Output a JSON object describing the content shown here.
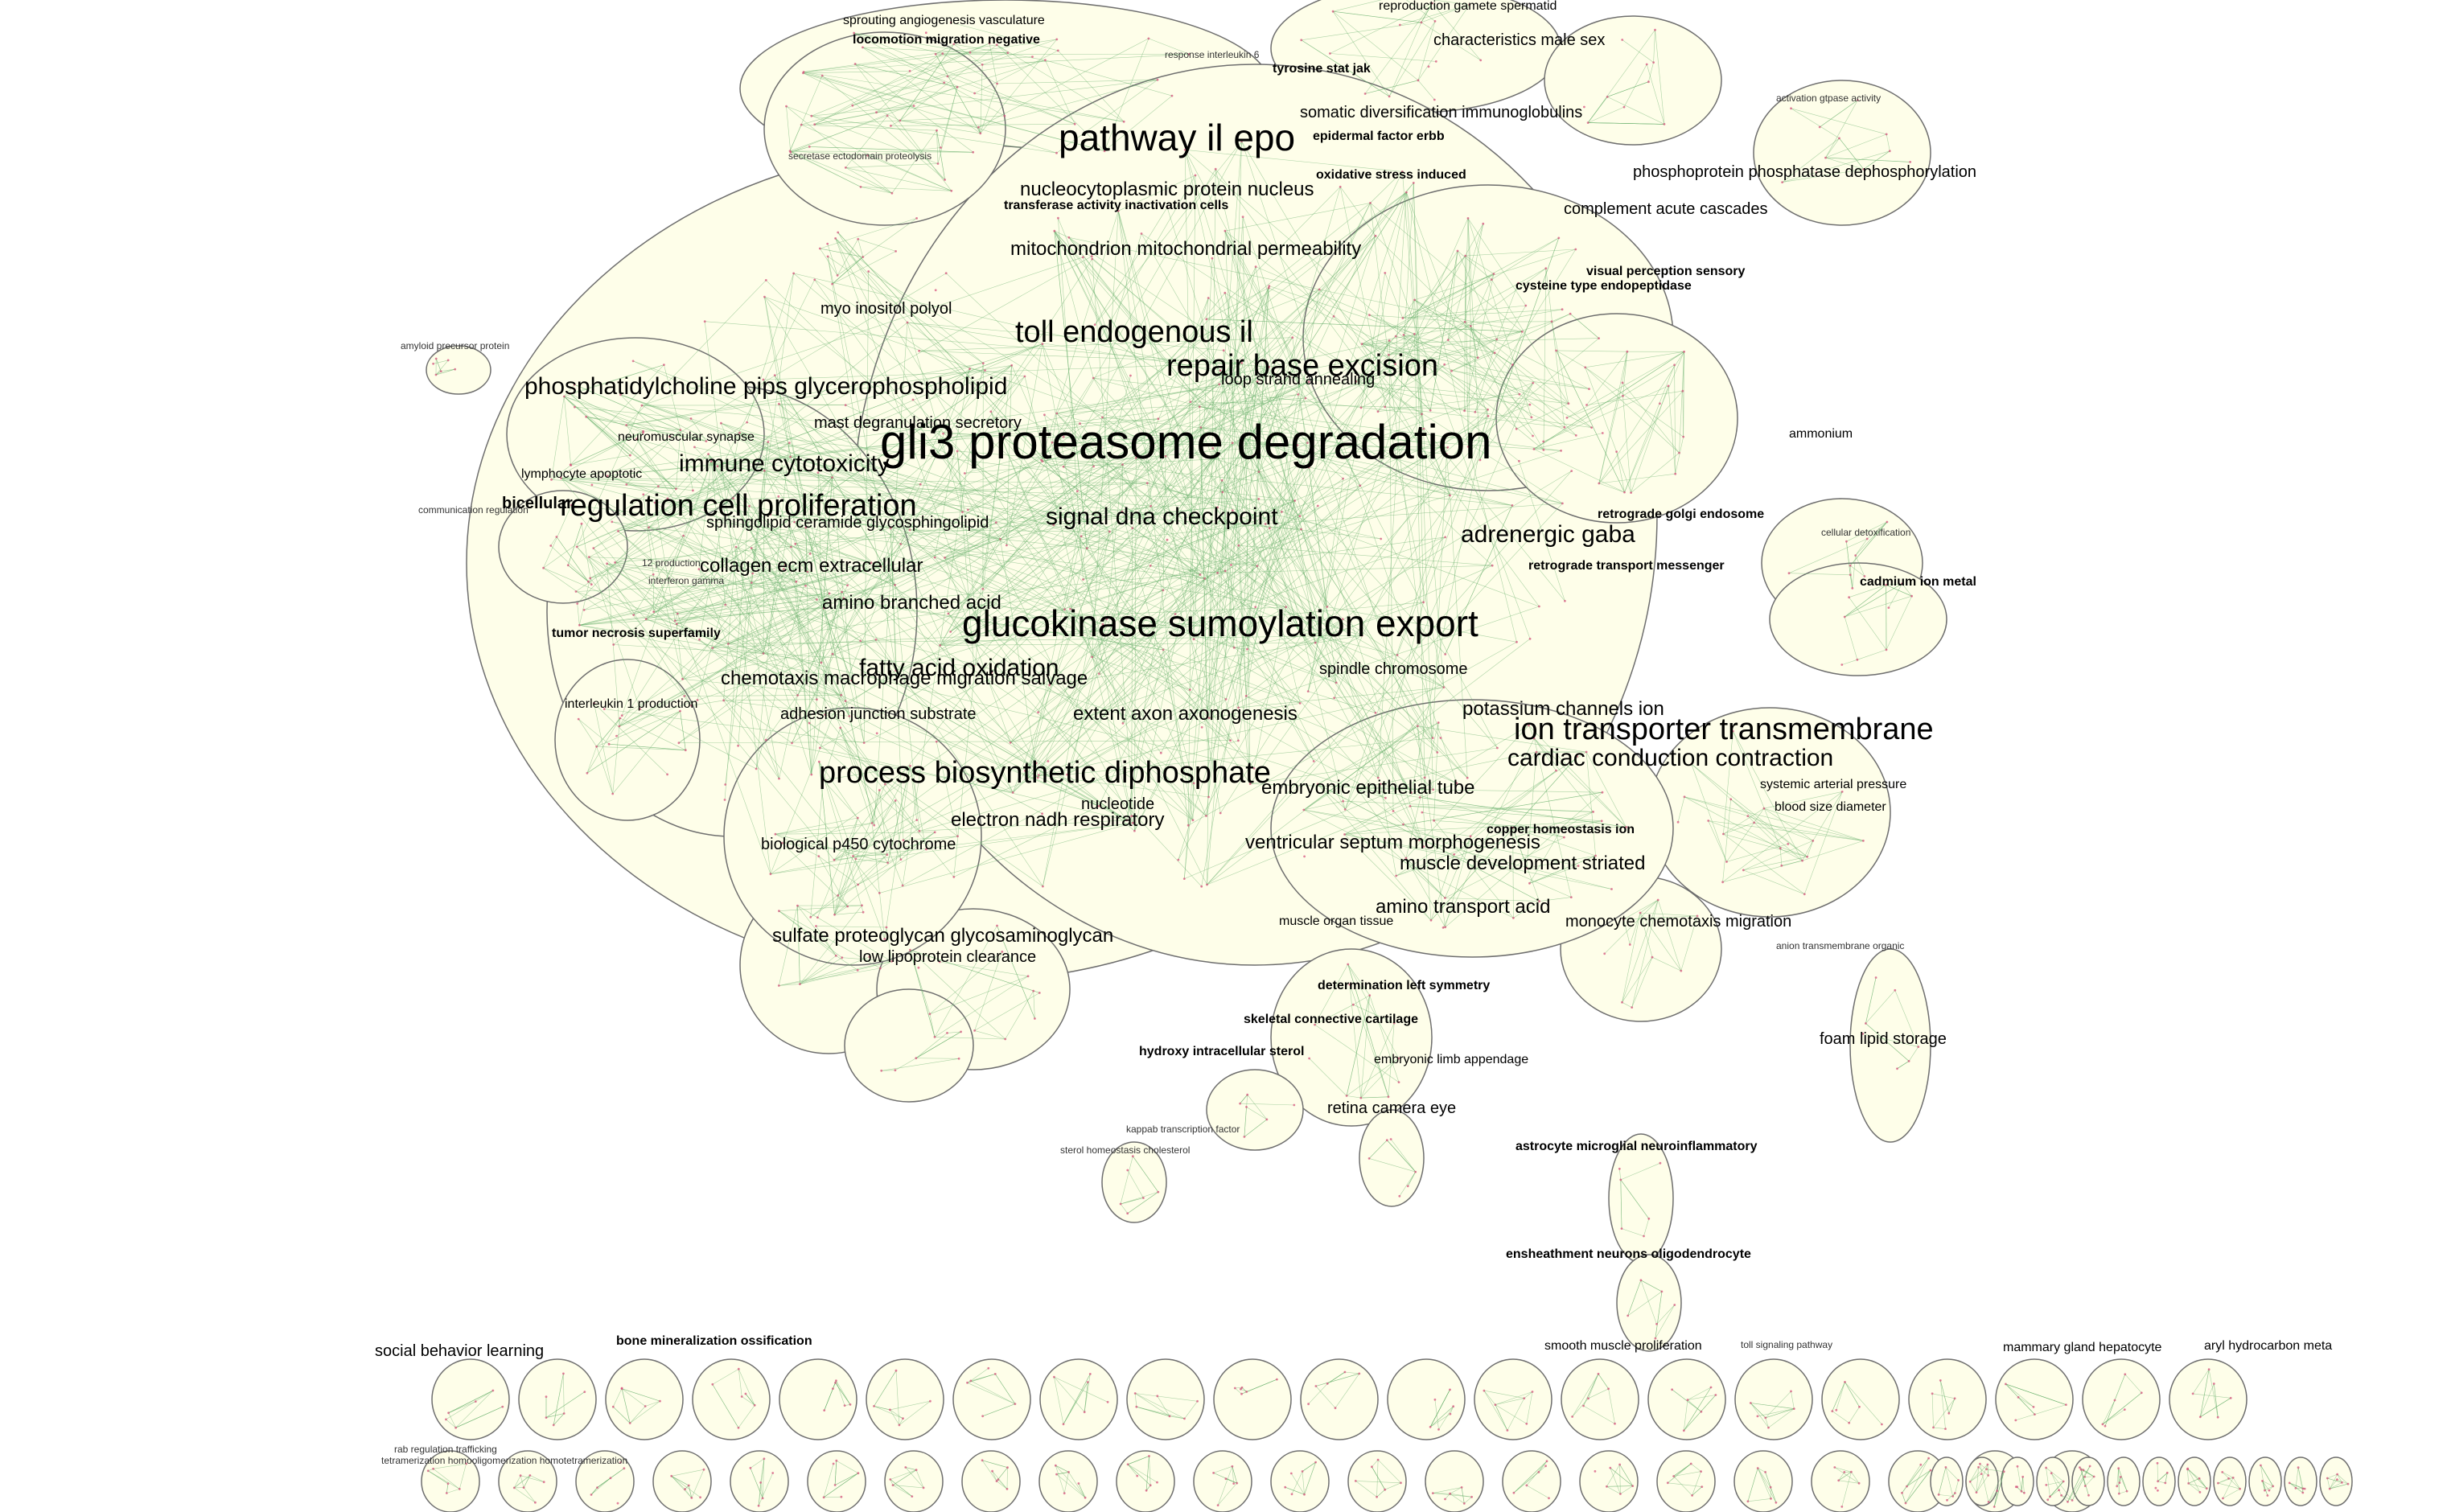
{
  "colors": {
    "cluster_fill": "#fefee9",
    "cluster_stroke": "#6e6e6e",
    "edge": "#69b06e",
    "node": "#d64b79"
  },
  "labels": {
    "l01": "sprouting angiogenesis vasculature",
    "l02": "locomotion migration negative",
    "l03": "reproduction gamete spermatid",
    "l04": "characteristics male sex",
    "l05": "tyrosine stat jak",
    "l06": "somatic diversification immunoglobulins",
    "l07": "activation gtpase activity",
    "l08": "pathway il epo",
    "l09": "epidermal factor erbb",
    "l10": "oxidative stress induced",
    "l11": "phosphoprotein phosphatase dephosphorylation",
    "l12": "secretase ectodomain proteolysis",
    "l13": "nucleocytoplasmic protein nucleus",
    "l14": "transferase activity inactivation cells",
    "l15": "complement acute cascades",
    "l16": "mitochondrion mitochondrial permeability",
    "l17": "visual perception sensory",
    "l18": "cysteine type endopeptidase",
    "l19": "myo inositol polyol",
    "l20": "toll endogenous il",
    "l21": "repair base excision",
    "l22": "amyloid precursor protein",
    "l23": "phosphatidylcholine pips glycerophospholipid",
    "l24": "mast degranulation secretory",
    "l25": "gli3 proteasome degradation",
    "l26": "immune cytotoxicity",
    "l27": "regulation cell proliferation",
    "l28": "bicellular",
    "l29": "adrenergic gaba",
    "l30": "glucokinase sumoylation export",
    "l31": "amino branched acid",
    "l32": "collagen ecm extracellular",
    "l33": "tumor necrosis superfamily",
    "l34": "fatty acid oxidation",
    "l35": "chemotaxis macrophage migration salvage",
    "l36": "interleukin 1 production",
    "l37": "adhesion junction substrate",
    "l38": "extent axon axonogenesis",
    "l39": "potassium channels ion",
    "l40": "ion transporter transmembrane",
    "l41": "cardiac conduction contraction",
    "l42": "process biosynthetic diphosphate",
    "l43": "embryonic epithelial tube",
    "l44": "electron nadh respiratory",
    "l45": "ventricular septum morphogenesis",
    "l46": "muscle development striated",
    "l47": "copper homeostasis ion",
    "l48": "amino transport acid",
    "l49": "monocyte chemotaxis migration",
    "l50": "sulfate proteoglycan glycosaminoglycan",
    "l51": "foam lipid storage",
    "l52": "determination left symmetry",
    "l53": "skeletal connective cartilage",
    "l54": "hydroxy intracellular sterol",
    "l55": "retina camera eye",
    "l56": "astrocyte microglial neuroinflammatory",
    "l57": "ensheathment neurons oligodendrocyte",
    "l58": "social behavior learning",
    "l59": "bone mineralization ossification",
    "l60": "cadmium ion metal",
    "l61": "retrograde golgi endosome",
    "l62": "signal dna checkpoint",
    "l63": "sphingolipid ceramide glycosphingolipid",
    "l64": "loop strand annealing",
    "l65": "spindle chromosome",
    "l66": "embryonic limb appendage",
    "l67": "biological p450 cytochrome",
    "l68": "ammonium",
    "l69": "nucleotide",
    "l70": "kappab transcription factor",
    "l71": "sterol homeostasis cholesterol",
    "l72": "smooth muscle proliferation",
    "l73": "toll signaling pathway",
    "l74": "aryl hydrocarbon meta",
    "l75": "rab regulation trafficking",
    "l76": "tetramerization homooligomerization homotetramerization",
    "l77": "systemic arterial pressure",
    "l78": "blood size diameter",
    "l79": "anion transmembrane organic",
    "l80": "response interleukin 6",
    "l81": "lymphocyte apoptotic",
    "l82": "neuromuscular synapse",
    "l83": "communication regulation",
    "l84": "12 production",
    "l85": "interferon gamma",
    "l86": "mammary gland hepatocyte",
    "l87": "cellular detoxification",
    "l88": "low lipoprotein clearance",
    "l89": "muscle organ tissue",
    "l90": "retrograde transport messenger"
  }
}
